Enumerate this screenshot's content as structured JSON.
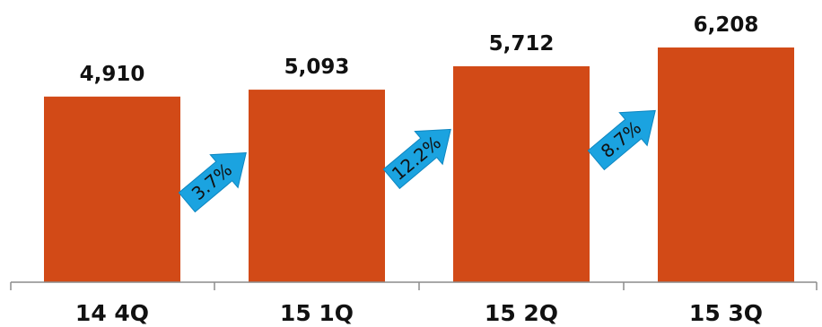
{
  "chart_data": {
    "type": "bar",
    "categories": [
      "14 4Q",
      "15 1Q",
      "15 2Q",
      "15 3Q"
    ],
    "values": [
      4910,
      5093,
      5712,
      6208
    ],
    "value_labels": [
      "4,910",
      "5,093",
      "5,712",
      "6,208"
    ],
    "growth": [
      {
        "from": "14 4Q",
        "to": "15 1Q",
        "label": "3.7%"
      },
      {
        "from": "15 1Q",
        "to": "15 2Q",
        "label": "12.2%"
      },
      {
        "from": "15 2Q",
        "to": "15 3Q",
        "label": "8.7%"
      }
    ],
    "title": "",
    "xlabel": "",
    "ylabel": "",
    "ylim": [
      0,
      7000
    ],
    "grid": false,
    "legend": "none",
    "colors": {
      "bar": "#D24A17",
      "arrow": "#1BA3E0",
      "arrow_stroke": "#0E86C0",
      "axis": "#8C8C8C",
      "text": "#111111"
    }
  }
}
